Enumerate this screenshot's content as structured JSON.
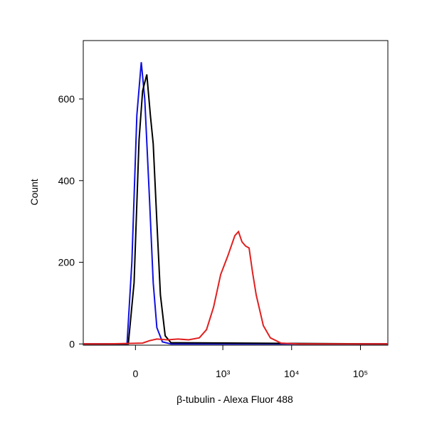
{
  "chart_data": {
    "type": "line",
    "x_label": "β-tubulin - Alexa Fluor 488",
    "y_label": "Count",
    "xscale": "arcsinh",
    "xlim": [
      -300,
      250000
    ],
    "ylim": [
      -3,
      743
    ],
    "xticks": [
      0,
      {
        "value": 1000,
        "label": "10³"
      },
      {
        "value": 10000,
        "label": "10⁴"
      },
      {
        "value": 100000,
        "label": "10⁵"
      }
    ],
    "yticks": [
      0,
      200,
      400,
      600
    ],
    "series": [
      {
        "name": "blue",
        "color": "#1010e0",
        "x": [
          -300,
          -31,
          -13,
          5,
          21,
          34,
          53,
          68,
          84,
          111,
          161,
          250000
        ],
        "values": [
          0,
          0,
          200,
          560,
          690,
          600,
          350,
          150,
          40,
          5,
          0,
          0
        ]
      },
      {
        "name": "black",
        "color": "#000000",
        "x": [
          -300,
          -26,
          -5,
          13,
          26,
          42,
          56,
          68,
          84,
          101,
          126,
          161,
          250000
        ],
        "values": [
          0,
          0,
          150,
          500,
          620,
          660,
          560,
          490,
          300,
          120,
          20,
          3,
          0
        ]
      },
      {
        "name": "red",
        "color": "#e02020",
        "x": [
          -300,
          -119,
          26,
          53,
          84,
          139,
          211,
          311,
          451,
          576,
          731,
          930,
          1180,
          1498,
          1690,
          1900,
          2140,
          2410,
          2710,
          3060,
          3880,
          4910,
          7020,
          12700,
          250000
        ],
        "values": [
          0,
          0,
          2,
          8,
          12,
          10,
          12,
          10,
          15,
          35,
          90,
          170,
          215,
          265,
          275,
          250,
          240,
          235,
          175,
          120,
          45,
          15,
          2,
          0,
          0
        ]
      }
    ]
  }
}
